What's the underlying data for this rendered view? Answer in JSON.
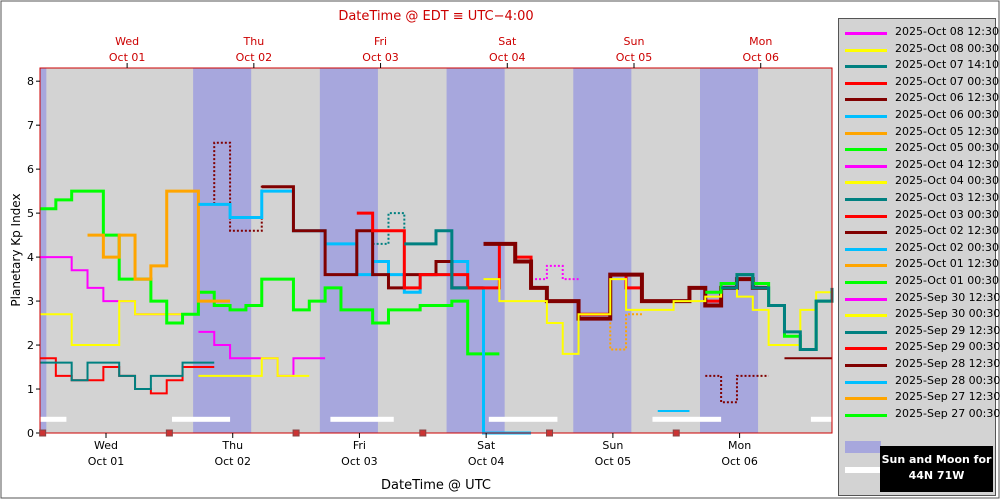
{
  "chart_data": {
    "type": "line",
    "title": "DateTime @ EDT ≡ UTC−4:00",
    "xlabel": "DateTime @ UTC",
    "ylabel": "Planetary Kp Index",
    "ylim": [
      0,
      8.3
    ],
    "y_ticks": [
      "0",
      "1",
      "2",
      "3",
      "4",
      "5",
      "6",
      "7",
      "8"
    ],
    "x_range_hours": [
      0,
      150
    ],
    "bottom_days": [
      {
        "day": "Wed",
        "date": "Oct 01"
      },
      {
        "day": "Thu",
        "date": "Oct 02"
      },
      {
        "day": "Fri",
        "date": "Oct 03"
      },
      {
        "day": "Sat",
        "date": "Oct 04"
      },
      {
        "day": "Sun",
        "date": "Oct 05"
      },
      {
        "day": "Mon",
        "date": "Oct 06"
      }
    ],
    "top_days": [
      {
        "day": "Wed",
        "date": "Oct 01"
      },
      {
        "day": "Thu",
        "date": "Oct 02"
      },
      {
        "day": "Fri",
        "date": "Oct 03"
      },
      {
        "day": "Sat",
        "date": "Oct 04"
      },
      {
        "day": "Sun",
        "date": "Oct 05"
      },
      {
        "day": "Mon",
        "date": "Oct 06"
      }
    ],
    "night_bands_hours": [
      [
        0,
        1.2
      ],
      [
        29,
        40
      ],
      [
        53,
        64
      ],
      [
        77,
        88
      ],
      [
        101,
        112
      ],
      [
        125,
        136
      ]
    ],
    "grid": false,
    "legend_placement": "right",
    "series": [
      {
        "name": "2025-Oct 08 12:30",
        "color": "#ff00ff"
      },
      {
        "name": "2025-Oct 08 00:30",
        "color": "#ffff00"
      },
      {
        "name": "2025-Oct 07 14:10",
        "color": "#008080"
      },
      {
        "name": "2025-Oct 07 00:30",
        "color": "#ff0000"
      },
      {
        "name": "2025-Oct 06 12:30",
        "color": "#800000"
      },
      {
        "name": "2025-Oct 06 00:30",
        "color": "#00bfff"
      },
      {
        "name": "2025-Oct 05 12:30",
        "color": "#ffa500"
      },
      {
        "name": "2025-Oct 05 00:30",
        "color": "#00ff00"
      },
      {
        "name": "2025-Oct 04 12:30",
        "color": "#ff00ff"
      },
      {
        "name": "2025-Oct 04 00:30",
        "color": "#ffff00"
      },
      {
        "name": "2025-Oct 03 12:30",
        "color": "#008080"
      },
      {
        "name": "2025-Oct 03 00:30",
        "color": "#ff0000"
      },
      {
        "name": "2025-Oct 02 12:30",
        "color": "#800000"
      },
      {
        "name": "2025-Oct 02 00:30",
        "color": "#00bfff"
      },
      {
        "name": "2025-Oct 01 12:30",
        "color": "#ffa500"
      },
      {
        "name": "2025-Oct 01 00:30",
        "color": "#00ff00"
      },
      {
        "name": "2025-Sep 30 12:30",
        "color": "#ff00ff"
      },
      {
        "name": "2025-Sep 30 00:30",
        "color": "#ffff00"
      },
      {
        "name": "2025-Sep 29 12:30",
        "color": "#008080"
      },
      {
        "name": "2025-Sep 29 00:30",
        "color": "#ff0000"
      },
      {
        "name": "2025-Sep 28 12:30",
        "color": "#800000"
      },
      {
        "name": "2025-Sep 28 00:30",
        "color": "#00bfff"
      },
      {
        "name": "2025-Sep 27 12:30",
        "color": "#ffa500"
      },
      {
        "name": "2025-Sep 27 00:30",
        "color": "#00ff00"
      }
    ],
    "traces": [
      {
        "color": "#ff00ff",
        "width": 2,
        "x": [
          0,
          3,
          6,
          9,
          12,
          15,
          18,
          21,
          24,
          27
        ],
        "y": [
          4,
          4,
          3.7,
          3.3,
          3,
          3,
          2.7,
          2.7,
          2.7,
          2.7
        ]
      },
      {
        "color": "#ff00ff",
        "width": 2,
        "x": [
          30,
          33,
          36,
          39,
          42,
          45,
          48,
          51
        ],
        "y": [
          2.3,
          2,
          1.7,
          1.7,
          1.7,
          1.3,
          1.7,
          1.7
        ]
      },
      {
        "color": "#ffff00",
        "width": 2,
        "x": [
          0,
          3,
          6,
          9,
          12,
          15,
          18,
          21,
          24
        ],
        "y": [
          2.7,
          2.7,
          2,
          2,
          2,
          3,
          2.7,
          2.7,
          2.7
        ]
      },
      {
        "color": "#ffff00",
        "width": 2,
        "x": [
          30,
          33,
          36,
          39,
          42,
          45,
          48
        ],
        "y": [
          1.3,
          1.3,
          1.3,
          1.3,
          1.7,
          1.3,
          1.3
        ]
      },
      {
        "color": "#ff0000",
        "width": 2,
        "x": [
          0,
          3,
          6,
          9,
          12,
          15,
          18,
          21,
          24,
          27,
          30
        ],
        "y": [
          1.7,
          1.3,
          1.2,
          1.2,
          1.5,
          1.3,
          1,
          0.9,
          1.2,
          1.5,
          1.5
        ]
      },
      {
        "color": "#008080",
        "width": 2,
        "x": [
          0,
          3,
          6,
          9,
          12,
          15,
          18,
          21,
          24,
          27,
          30
        ],
        "y": [
          1.6,
          1.6,
          1.2,
          1.6,
          1.6,
          1.3,
          1,
          1.3,
          1.3,
          1.6,
          1.6
        ]
      },
      {
        "color": "#00ff00",
        "width": 3,
        "x": [
          0,
          3,
          6,
          9,
          12,
          15,
          18,
          21,
          24,
          27,
          30,
          33,
          36,
          39,
          42,
          45,
          48,
          51,
          54,
          57,
          60,
          63,
          66,
          69,
          72,
          75,
          78,
          81,
          84
        ],
        "y": [
          5.1,
          5.3,
          5.5,
          5.5,
          4.5,
          3.5,
          3.5,
          3,
          2.5,
          2.7,
          3.2,
          2.9,
          2.8,
          2.9,
          3.5,
          3.5,
          2.8,
          3,
          3.3,
          2.8,
          2.8,
          2.5,
          2.8,
          2.8,
          2.9,
          2.9,
          3,
          1.8,
          1.8
        ]
      },
      {
        "color": "#ffa500",
        "width": 3,
        "x": [
          9,
          12,
          15,
          18,
          21,
          24,
          27,
          30,
          33
        ],
        "y": [
          4.5,
          4,
          4.5,
          3.5,
          3.8,
          5.5,
          5.5,
          3,
          3
        ]
      },
      {
        "color": "#00bfff",
        "width": 3,
        "x": [
          30,
          33,
          36,
          39,
          42,
          45,
          48,
          51,
          54,
          57,
          60,
          63,
          66,
          69,
          72,
          75,
          78,
          81,
          84,
          90
        ],
        "y": [
          5.2,
          5.2,
          4.9,
          4.9,
          5.5,
          5.5,
          4.6,
          4.6,
          4.3,
          4.3,
          3.6,
          3.9,
          3.6,
          3.2,
          3.6,
          3.6,
          3.9,
          3.3,
          0,
          0
        ]
      },
      {
        "color": "#800000",
        "width": 3,
        "x": [
          42,
          45,
          48,
          51,
          54,
          57,
          60,
          63,
          66,
          69,
          72,
          75,
          78,
          81
        ],
        "y": [
          5.6,
          5.6,
          4.6,
          4.6,
          3.6,
          3.6,
          4.6,
          3.6,
          3.3,
          3.6,
          3.6,
          3.9,
          3.3,
          3.3
        ]
      },
      {
        "color": "#ff0000",
        "width": 3,
        "x": [
          60,
          63,
          66,
          69,
          72,
          75,
          78,
          81,
          84,
          87,
          90,
          93,
          96,
          99,
          102,
          105,
          108,
          111,
          114,
          117,
          120,
          123,
          126,
          129,
          132,
          135
        ],
        "y": [
          5,
          4.6,
          4.6,
          3.3,
          3.6,
          3.6,
          3.6,
          3.3,
          3.3,
          4.3,
          4,
          3.3,
          3,
          3,
          2.7,
          2.7,
          3.6,
          3.3,
          3,
          3,
          3,
          3.3,
          3,
          3.3,
          3.5,
          3.3
        ]
      },
      {
        "color": "#008080",
        "width": 3,
        "x": [
          69,
          72,
          75,
          78
        ],
        "y": [
          4.3,
          4.3,
          4.6,
          3.3
        ]
      },
      {
        "color": "#800000",
        "width": 4,
        "x": [
          84,
          87,
          90,
          93,
          96,
          99,
          102,
          105,
          108,
          111,
          114,
          117,
          120,
          123,
          126,
          129,
          132,
          135
        ],
        "y": [
          4.3,
          4.3,
          3.9,
          3.3,
          3,
          3,
          2.6,
          2.6,
          3.6,
          3.6,
          3,
          3,
          3,
          3.3,
          2.9,
          3.3,
          3.5,
          3.3
        ]
      },
      {
        "color": "#ffff00",
        "width": 2,
        "x": [
          84,
          87,
          90,
          93,
          96,
          99,
          102,
          105,
          108,
          111,
          114,
          117,
          120,
          123,
          126,
          129,
          132,
          135,
          138,
          141,
          144,
          147,
          150
        ],
        "y": [
          3.5,
          3,
          3,
          3,
          2.5,
          1.8,
          2.7,
          2.7,
          3.5,
          2.8,
          2.8,
          2.8,
          3,
          3,
          3.1,
          3.3,
          3.1,
          2.8,
          2,
          2,
          2.8,
          3.2,
          3.2
        ]
      },
      {
        "color": "#00ff00",
        "width": 3,
        "x": [
          126,
          129,
          132,
          135,
          138,
          141,
          144,
          147,
          150
        ],
        "y": [
          3.2,
          3.4,
          3.6,
          3.4,
          2.9,
          2.2,
          1.9,
          3,
          3.2
        ]
      },
      {
        "color": "#008080",
        "width": 3,
        "x": [
          129,
          132,
          135,
          138,
          141,
          144,
          147,
          150
        ],
        "y": [
          3.3,
          3.6,
          3.3,
          2.9,
          2.3,
          1.9,
          3,
          3.3
        ]
      },
      {
        "color": "#800000",
        "width": 2,
        "x": [
          141,
          144,
          147,
          150
        ],
        "y": [
          1.7,
          1.7,
          1.7,
          1.7
        ]
      },
      {
        "color": "#00bfff",
        "width": 2,
        "x": [
          117,
          120
        ],
        "y": [
          0.5,
          0.5
        ]
      }
    ],
    "dotted_traces": [
      {
        "color": "#ffa500",
        "x": [
          12,
          15,
          18
        ],
        "y": [
          4.5,
          3.5,
          3.5
        ]
      },
      {
        "color": "#800000",
        "x": [
          30,
          33,
          36,
          39,
          42
        ],
        "y": [
          5.2,
          6.6,
          4.6,
          4.6,
          5.6
        ]
      },
      {
        "color": "#008080",
        "x": [
          63,
          66,
          69,
          72
        ],
        "y": [
          4.3,
          5,
          4.3,
          4.3
        ]
      },
      {
        "color": "#ff00ff",
        "x": [
          93,
          96,
          99
        ],
        "y": [
          3.5,
          3.8,
          3.5
        ]
      },
      {
        "color": "#ffa500",
        "x": [
          105,
          108,
          111
        ],
        "y": [
          2.7,
          1.9,
          2.7
        ]
      },
      {
        "color": "#800000",
        "x": [
          126,
          129,
          132,
          135
        ],
        "y": [
          1.3,
          0.7,
          1.3,
          1.3
        ]
      }
    ],
    "white_bars": [
      {
        "x0": 0,
        "x1": 5,
        "y": 0.3
      },
      {
        "x0": 25,
        "x1": 36,
        "y": 0.3
      },
      {
        "x0": 55,
        "x1": 67,
        "y": 0.3
      },
      {
        "x0": 85,
        "x1": 98,
        "y": 0.3
      },
      {
        "x0": 116,
        "x1": 129,
        "y": 0.3
      },
      {
        "x0": 146,
        "x1": 161,
        "y": 0.3
      }
    ]
  },
  "sun_moon": {
    "line1": "Sun and Moon for",
    "line2": "44N 71W"
  }
}
